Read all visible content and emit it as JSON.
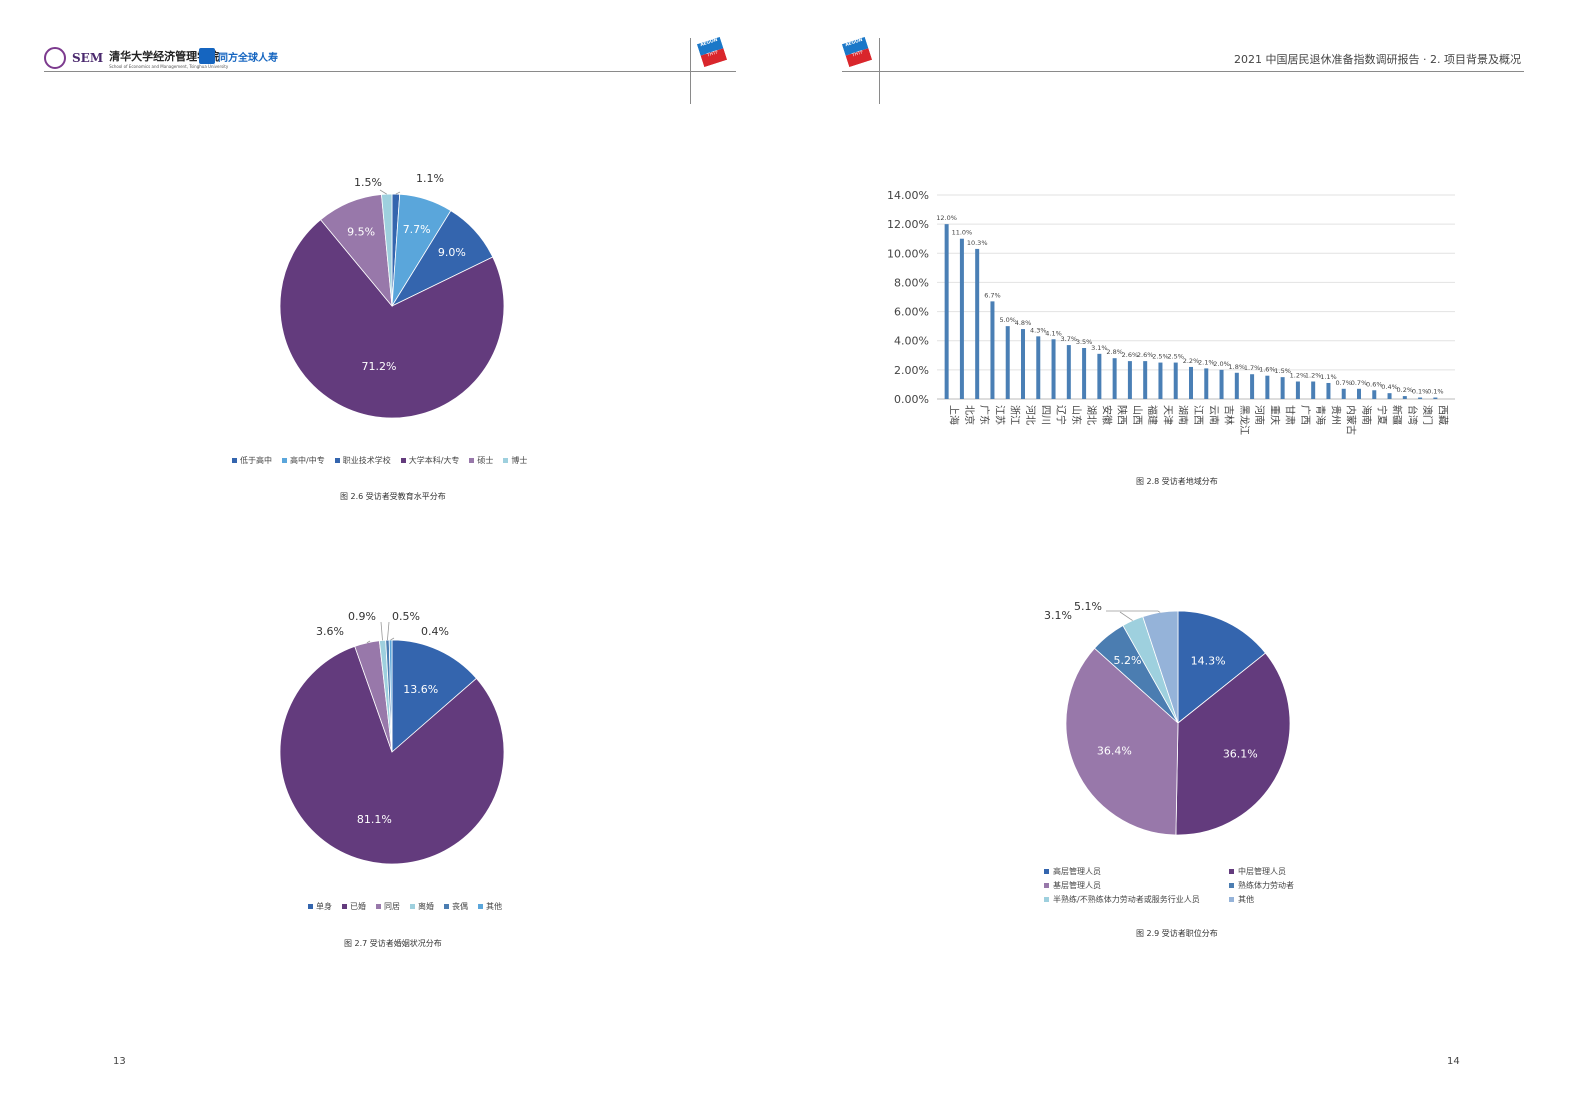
{
  "header": {
    "left_logo_en": "SEM",
    "left_logo_cn": "清华大学经济管理学院",
    "left_logo_sub": "School of Economics and Management, Tsinghua University",
    "partner_logo": "同方全球人寿",
    "aegon_top": "AEGON",
    "aegon_bottom": "THTF",
    "right_title": "2021 中国居民退休准备指数调研报告 · 2. 项目背景及概况"
  },
  "pages": {
    "left_number": "13",
    "right_number": "14"
  },
  "captions": {
    "fig26": "图 2.6 受访者受教育水平分布",
    "fig27": "图 2.7 受访者婚姻状况分布",
    "fig28": "图 2.8 受访者地域分布",
    "fig29": "图 2.9 受访者职位分布"
  },
  "colors": {
    "dark_purple": "#633b7d",
    "light_purple": "#9878aa",
    "light_blue": "#5aa6db",
    "mid_blue": "#3465ae",
    "steel_blue": "#4b7db1",
    "pale_cyan": "#9ed0de",
    "pale_blue": "#95b3d9",
    "bar_blue": "#4a7fb5"
  },
  "chart_data": [
    {
      "id": "fig26",
      "type": "pie",
      "title": "图 2.6 受访者受教育水平分布",
      "slices": [
        {
          "name": "低于高中",
          "value": 1.1,
          "label": "1.1%",
          "color": "#3465ae"
        },
        {
          "name": "高中/中专",
          "value": 7.7,
          "label": "7.7%",
          "color": "#5aa6db"
        },
        {
          "name": "职业技术学校",
          "value": 9.0,
          "label": "9.0%",
          "color": "#3465ae"
        },
        {
          "name": "大学本科/大专",
          "value": 71.2,
          "label": "71.2%",
          "color": "#633b7d"
        },
        {
          "name": "硕士",
          "value": 9.5,
          "label": "9.5%",
          "color": "#9878aa"
        },
        {
          "name": "博士",
          "value": 1.5,
          "label": "1.5%",
          "color": "#9ed0de"
        }
      ],
      "legend": [
        "低于高中",
        "高中/中专",
        "职业技术学校",
        "大学本科/大专",
        "硕士",
        "博士"
      ]
    },
    {
      "id": "fig27",
      "type": "pie",
      "title": "图 2.7 受访者婚姻状况分布",
      "slices": [
        {
          "name": "单身",
          "value": 13.6,
          "label": "13.6%",
          "color": "#3465ae"
        },
        {
          "name": "已婚",
          "value": 81.1,
          "label": "81.1%",
          "color": "#633b7d"
        },
        {
          "name": "同居",
          "value": 3.6,
          "label": "3.6%",
          "color": "#9878aa"
        },
        {
          "name": "离婚",
          "value": 0.9,
          "label": "0.9%",
          "color": "#9ed0de"
        },
        {
          "name": "丧偶",
          "value": 0.5,
          "label": "0.5%",
          "color": "#4b7db1"
        },
        {
          "name": "其他",
          "value": 0.4,
          "label": "0.4%",
          "color": "#5aa6db"
        }
      ],
      "legend": [
        "单身",
        "已婚",
        "同居",
        "离婚",
        "丧偶",
        "其他"
      ]
    },
    {
      "id": "fig28",
      "type": "bar",
      "title": "图 2.8 受访者地域分布",
      "ylim": [
        0,
        14
      ],
      "yticks": [
        "0.00%",
        "2.00%",
        "4.00%",
        "6.00%",
        "8.00%",
        "10.00%",
        "12.00%",
        "14.00%"
      ],
      "categories": [
        "上海",
        "北京",
        "广东",
        "江苏",
        "浙江",
        "河北",
        "四川",
        "辽宁",
        "山东",
        "湖北",
        "安徽",
        "陕西",
        "山西",
        "福建",
        "天津",
        "湖南",
        "江西",
        "云南",
        "吉林",
        "黑龙江",
        "河南",
        "重庆",
        "甘肃",
        "广西",
        "青海",
        "贵州",
        "内蒙古",
        "海南",
        "宁夏",
        "新疆",
        "台湾",
        "澳门",
        "西藏"
      ],
      "values": [
        12.0,
        11.0,
        10.3,
        6.7,
        5.0,
        4.8,
        4.3,
        4.1,
        3.7,
        3.5,
        3.1,
        2.8,
        2.6,
        2.6,
        2.5,
        2.5,
        2.2,
        2.1,
        2.0,
        1.8,
        1.7,
        1.6,
        1.5,
        1.2,
        1.2,
        1.1,
        0.7,
        0.7,
        0.6,
        0.4,
        0.2,
        0.1,
        0.1
      ],
      "labels": [
        "12.0%",
        "11.0%",
        "10.3%",
        "6.7%",
        "5.0%",
        "4.8%",
        "4.3%",
        "4.1%",
        "3.7%",
        "3.5%",
        "3.1%",
        "2.8%",
        "2.6%",
        "2.6%",
        "2.5%",
        "2.5%",
        "2.2%",
        "2.1%",
        "2.0%",
        "1.8%",
        "1.7%",
        "1.6%",
        "1.5%",
        "1.2%",
        "1.2%",
        "1.1%",
        "0.7%",
        "0.7%",
        "0.6%",
        "0.4%",
        "0.2%",
        "0.1%",
        "0.1%"
      ],
      "color": "#4a7fb5"
    },
    {
      "id": "fig29",
      "type": "pie",
      "title": "图 2.9 受访者职位分布",
      "slices": [
        {
          "name": "高层管理人员",
          "value": 14.3,
          "label": "14.3%",
          "color": "#3465ae"
        },
        {
          "name": "中层管理人员",
          "value": 36.1,
          "label": "36.1%",
          "color": "#633b7d"
        },
        {
          "name": "基层管理人员",
          "value": 36.4,
          "label": "36.4%",
          "color": "#9878aa"
        },
        {
          "name": "熟练体力劳动者",
          "value": 5.2,
          "label": "5.2%",
          "color": "#4b7db1"
        },
        {
          "name": "半熟练/不熟练体力劳动者或服务行业人员",
          "value": 3.1,
          "label": "3.1%",
          "color": "#9ed0de"
        },
        {
          "name": "其他",
          "value": 5.1,
          "label": "5.1%",
          "color": "#95b3d9"
        }
      ],
      "legend": [
        "高层管理人员",
        "中层管理人员",
        "基层管理人员",
        "熟练体力劳动者",
        "半熟练/不熟练体力劳动者或服务行业人员",
        "其他"
      ]
    }
  ]
}
